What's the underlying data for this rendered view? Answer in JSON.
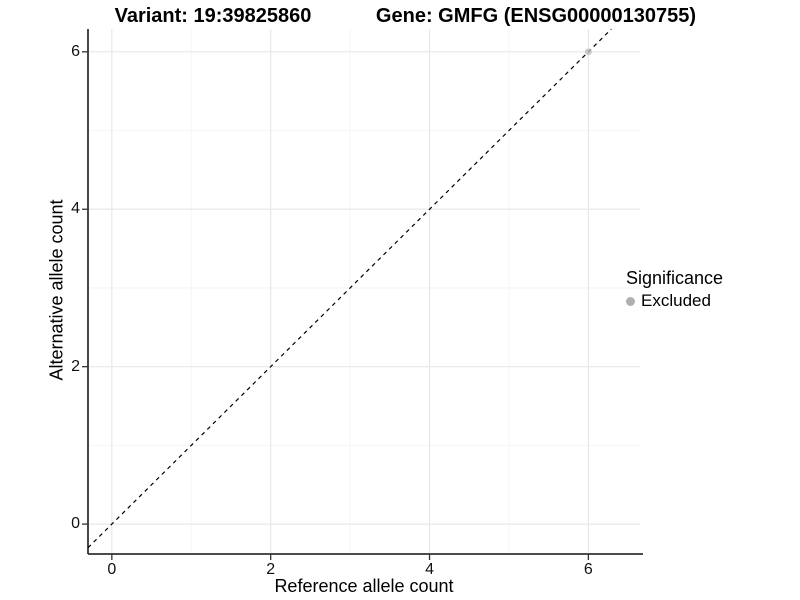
{
  "titles": {
    "variant": "Variant: 19:39825860",
    "gene": "Gene: GMFG (ENSG00000130755)"
  },
  "axes": {
    "x_label": "Reference allele count",
    "y_label": "Alternative allele count"
  },
  "legend": {
    "title": "Significance",
    "items": [
      {
        "label": "Excluded",
        "color": "#b0b0b0"
      }
    ]
  },
  "chart_data": {
    "type": "scatter",
    "title": "Variant: 19:39825860 | Gene: GMFG (ENSG00000130755)",
    "xlabel": "Reference allele count",
    "ylabel": "Alternative allele count",
    "xlim": [
      -0.3,
      6.65
    ],
    "ylim": [
      -0.38,
      6.29
    ],
    "x_major_ticks": [
      0,
      2,
      4,
      6
    ],
    "y_major_ticks": [
      0,
      2,
      4,
      6
    ],
    "x_minor_gridlines": [
      1,
      3,
      5
    ],
    "y_minor_gridlines": [
      1,
      3,
      5
    ],
    "grid": "on",
    "legend_position": "right",
    "series": [
      {
        "name": "Excluded",
        "color": "#bebebe",
        "point_opacity": 0.8,
        "points": [
          [
            6,
            6
          ]
        ]
      }
    ],
    "reference_line": {
      "type": "identity",
      "slope": 1,
      "intercept": 0,
      "style": "dashed",
      "color": "#000000"
    },
    "colors": {
      "major_grid": "#e8e8e8",
      "minor_grid": "#f3f3f3",
      "axis_line": "#333333",
      "tick": "#333333",
      "text": "#000000"
    }
  }
}
